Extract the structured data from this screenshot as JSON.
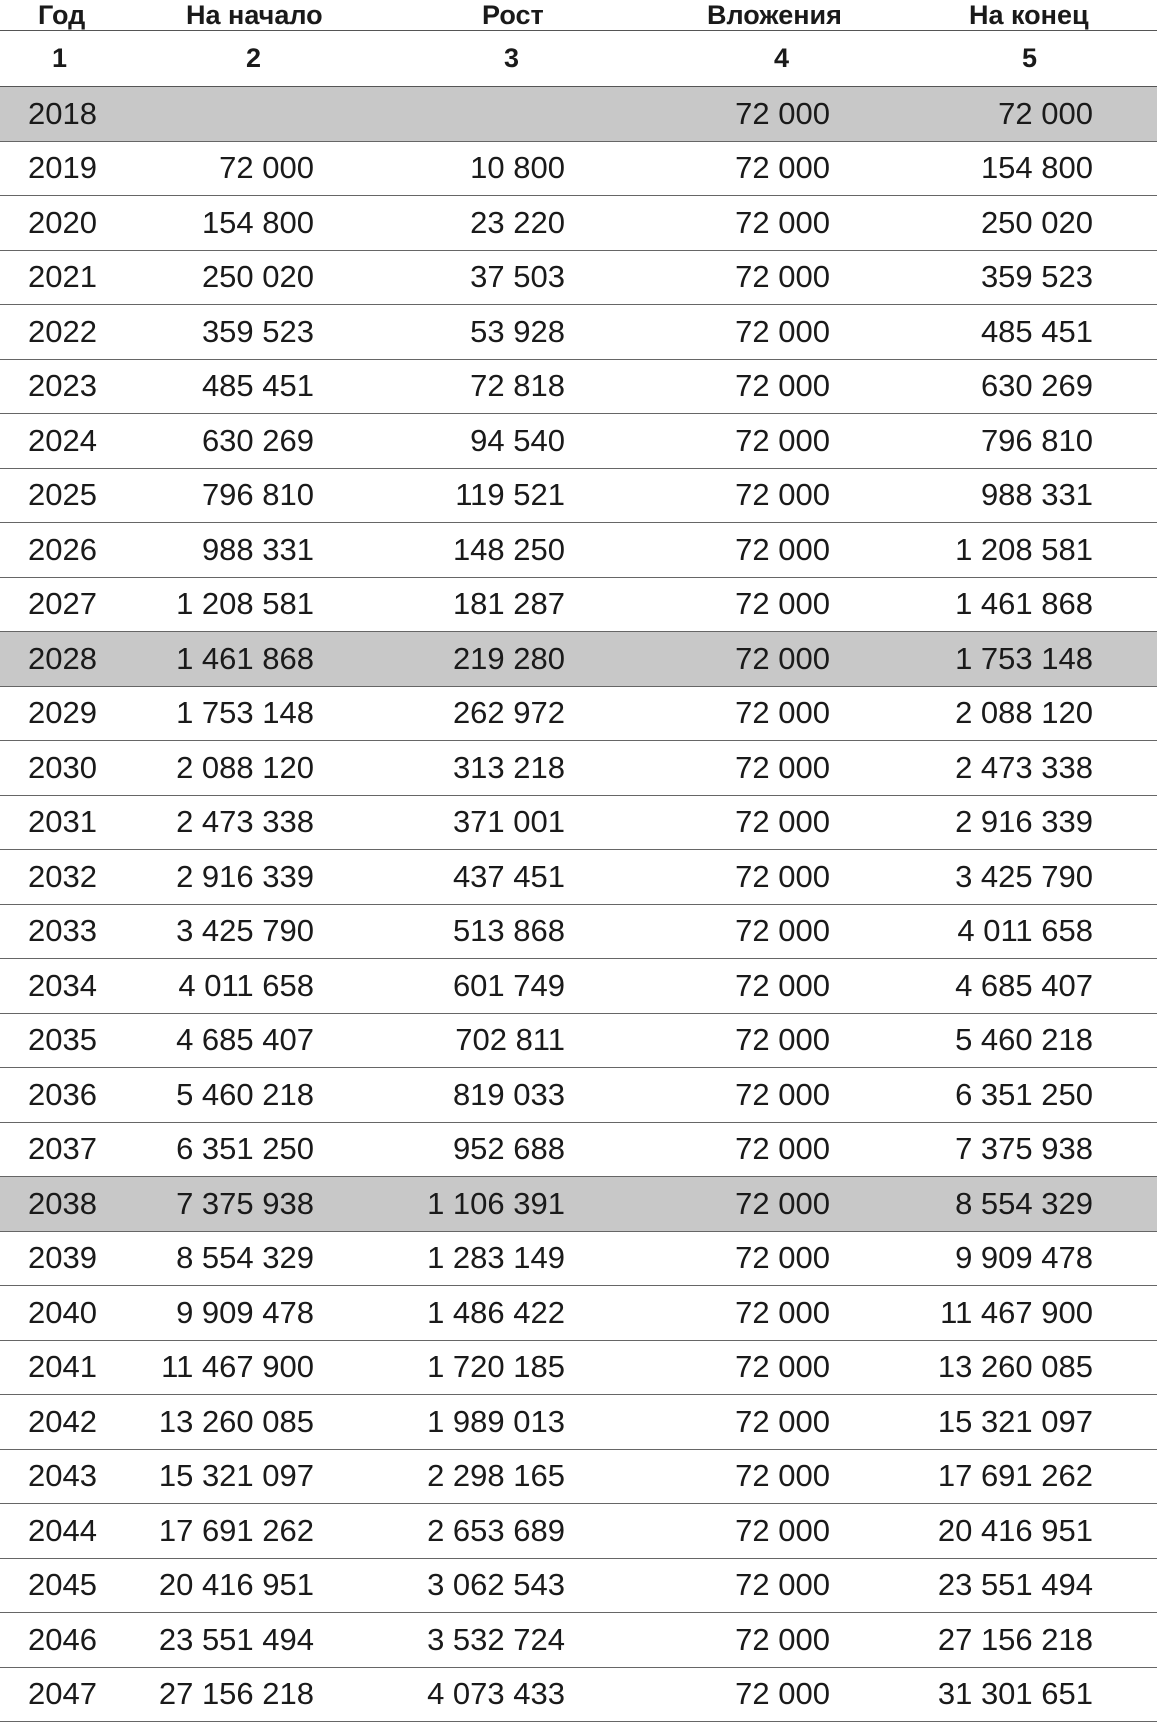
{
  "table": {
    "headers": [
      "Год",
      "На начало",
      "Рост",
      "Вложения",
      "На конец"
    ],
    "column_numbers": [
      "1",
      "2",
      "3",
      "4",
      "5"
    ],
    "rows": [
      {
        "year": "2018",
        "start": "",
        "growth": "",
        "invest": "72 000",
        "end": "72 000",
        "shaded": true
      },
      {
        "year": "2019",
        "start": "72 000",
        "growth": "10 800",
        "invest": "72 000",
        "end": "154 800",
        "shaded": false
      },
      {
        "year": "2020",
        "start": "154 800",
        "growth": "23 220",
        "invest": "72 000",
        "end": "250 020",
        "shaded": false
      },
      {
        "year": "2021",
        "start": "250 020",
        "growth": "37 503",
        "invest": "72 000",
        "end": "359 523",
        "shaded": false
      },
      {
        "year": "2022",
        "start": "359 523",
        "growth": "53 928",
        "invest": "72 000",
        "end": "485 451",
        "shaded": false
      },
      {
        "year": "2023",
        "start": "485 451",
        "growth": "72 818",
        "invest": "72 000",
        "end": "630 269",
        "shaded": false
      },
      {
        "year": "2024",
        "start": "630 269",
        "growth": "94 540",
        "invest": "72 000",
        "end": "796 810",
        "shaded": false
      },
      {
        "year": "2025",
        "start": "796 810",
        "growth": "119 521",
        "invest": "72 000",
        "end": "988 331",
        "shaded": false
      },
      {
        "year": "2026",
        "start": "988 331",
        "growth": "148 250",
        "invest": "72 000",
        "end": "1 208 581",
        "shaded": false
      },
      {
        "year": "2027",
        "start": "1 208 581",
        "growth": "181 287",
        "invest": "72 000",
        "end": "1 461 868",
        "shaded": false
      },
      {
        "year": "2028",
        "start": "1 461 868",
        "growth": "219 280",
        "invest": "72 000",
        "end": "1 753 148",
        "shaded": true
      },
      {
        "year": "2029",
        "start": "1 753 148",
        "growth": "262 972",
        "invest": "72 000",
        "end": "2 088 120",
        "shaded": false
      },
      {
        "year": "2030",
        "start": "2 088 120",
        "growth": "313 218",
        "invest": "72 000",
        "end": "2 473 338",
        "shaded": false
      },
      {
        "year": "2031",
        "start": "2 473 338",
        "growth": "371 001",
        "invest": "72 000",
        "end": "2 916 339",
        "shaded": false
      },
      {
        "year": "2032",
        "start": "2 916 339",
        "growth": "437 451",
        "invest": "72 000",
        "end": "3 425 790",
        "shaded": false
      },
      {
        "year": "2033",
        "start": "3 425 790",
        "growth": "513 868",
        "invest": "72 000",
        "end": "4 011 658",
        "shaded": false
      },
      {
        "year": "2034",
        "start": "4 011 658",
        "growth": "601 749",
        "invest": "72 000",
        "end": "4 685 407",
        "shaded": false
      },
      {
        "year": "2035",
        "start": "4 685 407",
        "growth": "702 811",
        "invest": "72 000",
        "end": "5 460 218",
        "shaded": false
      },
      {
        "year": "2036",
        "start": "5 460 218",
        "growth": "819 033",
        "invest": "72 000",
        "end": "6 351 250",
        "shaded": false
      },
      {
        "year": "2037",
        "start": "6 351 250",
        "growth": "952 688",
        "invest": "72 000",
        "end": "7 375 938",
        "shaded": false
      },
      {
        "year": "2038",
        "start": "7 375 938",
        "growth": "1 106 391",
        "invest": "72 000",
        "end": "8 554 329",
        "shaded": true
      },
      {
        "year": "2039",
        "start": "8 554 329",
        "growth": "1 283 149",
        "invest": "72 000",
        "end": "9 909 478",
        "shaded": false
      },
      {
        "year": "2040",
        "start": "9 909 478",
        "growth": "1 486 422",
        "invest": "72 000",
        "end": "11 467 900",
        "shaded": false
      },
      {
        "year": "2041",
        "start": "11 467 900",
        "growth": "1 720 185",
        "invest": "72 000",
        "end": "13 260 085",
        "shaded": false
      },
      {
        "year": "2042",
        "start": "13 260 085",
        "growth": "1 989 013",
        "invest": "72 000",
        "end": "15 321 097",
        "shaded": false
      },
      {
        "year": "2043",
        "start": "15 321 097",
        "growth": "2 298 165",
        "invest": "72 000",
        "end": "17 691 262",
        "shaded": false
      },
      {
        "year": "2044",
        "start": "17 691 262",
        "growth": "2 653 689",
        "invest": "72 000",
        "end": "20 416 951",
        "shaded": false
      },
      {
        "year": "2045",
        "start": "20 416 951",
        "growth": "3 062 543",
        "invest": "72 000",
        "end": "23 551 494",
        "shaded": false
      },
      {
        "year": "2046",
        "start": "23 551 494",
        "growth": "3 532 724",
        "invest": "72 000",
        "end": "27 156 218",
        "shaded": false
      },
      {
        "year": "2047",
        "start": "27 156 218",
        "growth": "4 073 433",
        "invest": "72 000",
        "end": "31 301 651",
        "shaded": false
      }
    ]
  },
  "colors": {
    "shaded_row": "#c8c8c8",
    "text": "#1a1a1a",
    "rule": "#666666"
  }
}
